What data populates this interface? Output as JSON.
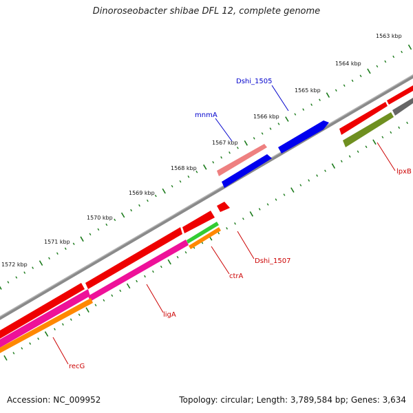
{
  "title": "Dinoroseobacter shibae DFL 12, complete genome",
  "footer": {
    "accession": "Accession: NC_009952",
    "summary": "Topology: circular; Length: 3,789,584 bp; Genes: 3,634"
  },
  "colors": {
    "backbone": "#8a8a8a",
    "tick": "#1a7a1a",
    "label_red": "#cc0000",
    "label_blue": "#0000cc",
    "red": "#ee0000",
    "pink": "#ee1199",
    "orange": "#ff8800",
    "green": "#33cc33",
    "olive": "#6f8f20",
    "gray": "#666666",
    "blue": "#0000ee",
    "salmon": "#ee8080"
  },
  "scale_labels": [
    "1563 kbp",
    "1564 kbp",
    "1565 kbp",
    "1566 kbp",
    "1567 kbp",
    "1568 kbp",
    "1569 kbp",
    "1570 kbp",
    "1571 kbp",
    "1572 kbp"
  ],
  "gene_labels": [
    {
      "text": "Dshi_1505",
      "color": "blue"
    },
    {
      "text": "mnmA",
      "color": "blue"
    },
    {
      "text": "lpxB",
      "color": "red"
    },
    {
      "text": "Dshi_1507",
      "color": "red"
    },
    {
      "text": "ctrA",
      "color": "red"
    },
    {
      "text": "ligA",
      "color": "red"
    },
    {
      "text": "recG",
      "color": "red"
    }
  ]
}
